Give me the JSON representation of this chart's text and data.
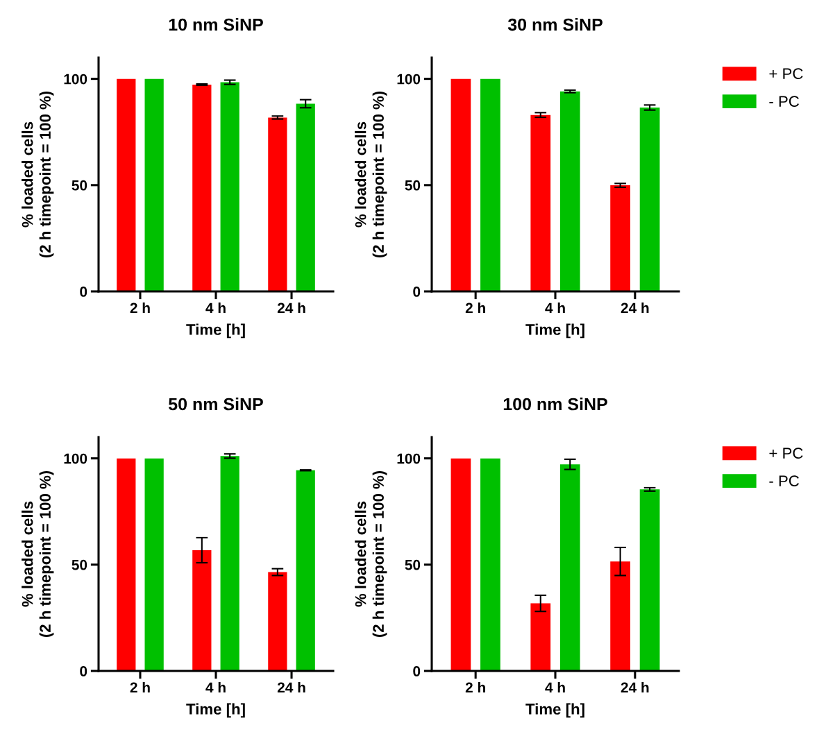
{
  "chart_data": [
    {
      "type": "bar",
      "title": "10 nm SiNP",
      "xlabel": "Time [h]",
      "ylabel": "% loaded cells\n(2 h timepoint = 100 %)",
      "categories": [
        "2 h",
        "4 h",
        "24 h"
      ],
      "ylim": [
        0,
        110
      ],
      "yticks": [
        0,
        50,
        100
      ],
      "grid": false,
      "legend": false,
      "series": [
        {
          "color": "#ff0000",
          "values": [
            100,
            97.3,
            81.8
          ],
          "errors": [
            null,
            0.3,
            0.7
          ]
        },
        {
          "color": "#00c000",
          "values": [
            100,
            98.4,
            88.3
          ],
          "errors": [
            null,
            1.0,
            1.9
          ]
        }
      ]
    },
    {
      "type": "bar",
      "title": "30 nm SiNP",
      "xlabel": "Time [h]",
      "ylabel": "% loaded cells\n(2 h timepoint = 100 %)",
      "categories": [
        "2 h",
        "4 h",
        "24 h"
      ],
      "ylim": [
        0,
        110
      ],
      "yticks": [
        0,
        50,
        100
      ],
      "grid": false,
      "legend": "right",
      "series": [
        {
          "name": "+ PC",
          "color": "#ff0000",
          "values": [
            100,
            83.0,
            49.9
          ],
          "errors": [
            null,
            1.1,
            0.9
          ]
        },
        {
          "name": "- PC",
          "color": "#00c000",
          "values": [
            100,
            94.1,
            86.5
          ],
          "errors": [
            null,
            0.6,
            1.2
          ]
        }
      ]
    },
    {
      "type": "bar",
      "title": "50 nm SiNP",
      "xlabel": "Time [h]",
      "ylabel": "% loaded cells\n(2 h timepoint = 100 %)",
      "categories": [
        "2 h",
        "4 h",
        "24 h"
      ],
      "ylim": [
        0,
        110
      ],
      "yticks": [
        0,
        50,
        100
      ],
      "grid": false,
      "legend": false,
      "series": [
        {
          "color": "#ff0000",
          "values": [
            100,
            56.8,
            46.5
          ],
          "errors": [
            null,
            5.9,
            1.6
          ]
        },
        {
          "color": "#00c000",
          "values": [
            100,
            101.1,
            94.4
          ],
          "errors": [
            null,
            1.0,
            0.2
          ]
        }
      ]
    },
    {
      "type": "bar",
      "title": "100 nm SiNP",
      "xlabel": "Time [h]",
      "ylabel": "% loaded cells\n(2 h timepoint = 100 %)",
      "categories": [
        "2 h",
        "4 h",
        "24 h"
      ],
      "ylim": [
        0,
        110
      ],
      "yticks": [
        0,
        50,
        100
      ],
      "grid": false,
      "legend": "right",
      "series": [
        {
          "name": "+ PC",
          "color": "#ff0000",
          "values": [
            100,
            31.8,
            51.5
          ],
          "errors": [
            null,
            3.8,
            6.6
          ]
        },
        {
          "name": "- PC",
          "color": "#00c000",
          "values": [
            100,
            97.2,
            85.4
          ],
          "errors": [
            null,
            2.4,
            0.8
          ]
        }
      ]
    }
  ]
}
